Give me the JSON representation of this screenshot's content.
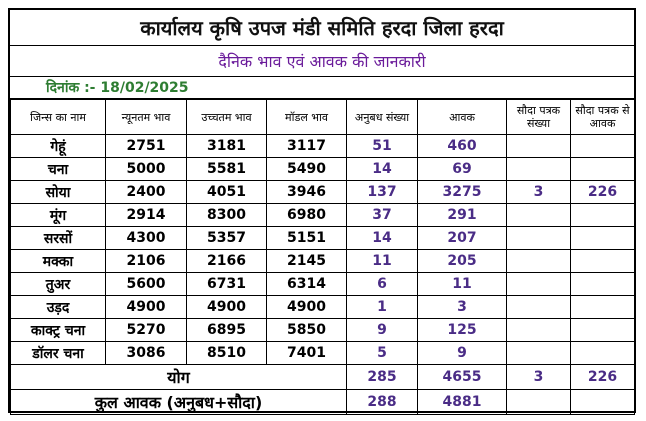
{
  "title": "कार्यालय कृषि उपज मंडी समिति हरदा जिला हरदा",
  "subtitle": "दैनिक भाव एवं आवक की जानकारी",
  "date_label": "दिनांक :- 18/02/2025",
  "headers": [
    "जिन्स का नाम",
    "न्यूनतम भाव",
    "उच्चतम भाव",
    "मॉडल भाव",
    "अनुबध संख्या",
    "आवक",
    "सौदा पत्रक संख्या",
    "सौदा पत्रक से आवक"
  ],
  "rows": [
    {
      "name": "गेहूं",
      "min": "2751",
      "max": "3181",
      "model": "3117",
      "anubandh": "51",
      "aavak": "460",
      "sauda_count": "",
      "sauda_aavak": ""
    },
    {
      "name": "चना",
      "min": "5000",
      "max": "5581",
      "model": "5490",
      "anubandh": "14",
      "aavak": "69",
      "sauda_count": "",
      "sauda_aavak": ""
    },
    {
      "name": "सोया",
      "min": "2400",
      "max": "4051",
      "model": "3946",
      "anubandh": "137",
      "aavak": "3275",
      "sauda_count": "3",
      "sauda_aavak": "226"
    },
    {
      "name": "मूंग",
      "min": "2914",
      "max": "8300",
      "model": "6980",
      "anubandh": "37",
      "aavak": "291",
      "sauda_count": "",
      "sauda_aavak": ""
    },
    {
      "name": "सरसों",
      "min": "4300",
      "max": "5357",
      "model": "5151",
      "anubandh": "14",
      "aavak": "207",
      "sauda_count": "",
      "sauda_aavak": ""
    },
    {
      "name": "मक्का",
      "min": "2106",
      "max": "2166",
      "model": "2145",
      "anubandh": "11",
      "aavak": "205",
      "sauda_count": "",
      "sauda_aavak": ""
    },
    {
      "name": "तुअर",
      "min": "5600",
      "max": "6731",
      "model": "6314",
      "anubandh": "6",
      "aavak": "11",
      "sauda_count": "",
      "sauda_aavak": ""
    },
    {
      "name": "उड़द",
      "min": "4900",
      "max": "4900",
      "model": "4900",
      "anubandh": "1",
      "aavak": "3",
      "sauda_count": "",
      "sauda_aavak": ""
    },
    {
      "name": "काक्ट्र चना",
      "min": "5270",
      "max": "6895",
      "model": "5850",
      "anubandh": "9",
      "aavak": "125",
      "sauda_count": "",
      "sauda_aavak": ""
    },
    {
      "name": "डॉलर चना",
      "min": "3086",
      "max": "8510",
      "model": "7401",
      "anubandh": "5",
      "aavak": "9",
      "sauda_count": "",
      "sauda_aavak": ""
    }
  ],
  "total": {
    "label": "योग",
    "anubandh": "285",
    "aavak": "4655",
    "sauda_count": "3",
    "sauda_aavak": "226"
  },
  "grand_total": {
    "label": "कुल आवक (अनुबध+सौदा)",
    "anubandh": "288",
    "aavak": "4881"
  },
  "colors": {
    "purple_values": "#4a2c86",
    "subtitle": "#6a1b9a",
    "date": "#2e7d32"
  }
}
